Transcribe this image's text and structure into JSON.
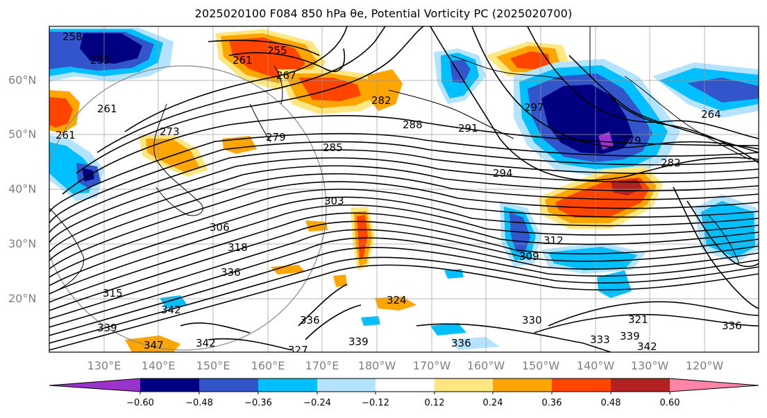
{
  "title": "2025020100 F084 850 hPa θe, Potential Vorticity PC (2025020700)",
  "lat_labels": [
    "60°N",
    "50°N",
    "40°N",
    "30°N",
    "20°N"
  ],
  "lon_labels": [
    "130°E",
    "140°E",
    "150°E",
    "160°E",
    "170°E",
    "180°W",
    "170°W",
    "160°W",
    "150°W",
    "140°W",
    "130°W",
    "120°W"
  ],
  "contour_labels": [
    "258",
    "255",
    "261",
    "255",
    "267",
    "261",
    "261",
    "273",
    "279",
    "282",
    "288",
    "291",
    "297",
    "279",
    "285",
    "294",
    "282",
    "264",
    "303",
    "306",
    "318",
    "312",
    "309",
    "315",
    "324",
    "330",
    "336",
    "342",
    "336",
    "339",
    "347",
    "342",
    "327",
    "339",
    "336",
    "333",
    "339",
    "342",
    "336",
    "321"
  ],
  "colorbar": {
    "colors": [
      "#9933cc",
      "#000080",
      "#3355cc",
      "#00bfff",
      "#b3e3ff",
      "#ffffff",
      "#ffe680",
      "#ffa500",
      "#ff4500",
      "#b22222",
      "#ff85a8"
    ],
    "tick_labels": [
      "−0.60",
      "−0.48",
      "−0.36",
      "−0.24",
      "−0.12",
      "0.12",
      "0.24",
      "0.36",
      "0.48",
      "0.60"
    ]
  },
  "fill_colors": {
    "neg_strong": "#000080",
    "neg_mid": "#3355cc",
    "neg_light": "#00bfff",
    "neg_pale": "#b3e3ff",
    "pos_pale": "#ffe680",
    "pos_light": "#ffa500",
    "pos_mid": "#ff4500",
    "pos_strong": "#b22222",
    "neg_extreme": "#9933cc"
  }
}
